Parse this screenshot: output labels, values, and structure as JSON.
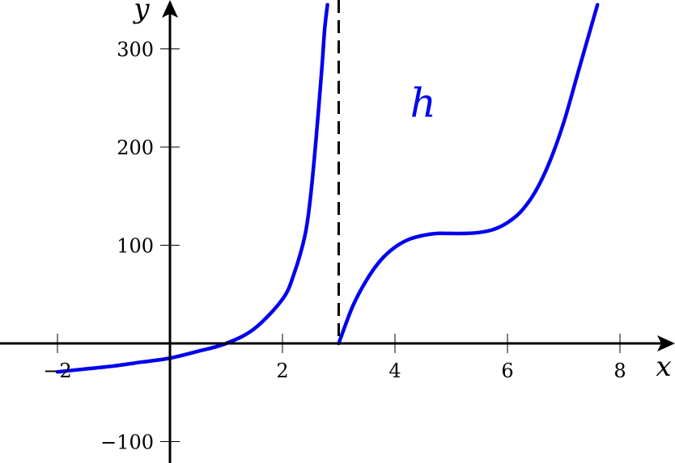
{
  "chart_data": {
    "type": "line",
    "title": "",
    "xlabel": "x",
    "ylabel": "y",
    "xlim": [
      -3,
      9.2
    ],
    "ylim": [
      -120,
      340
    ],
    "x_ticks": [
      {
        "value": -2,
        "label": "−2"
      },
      {
        "value": 2,
        "label": "2"
      },
      {
        "value": 4,
        "label": "4"
      },
      {
        "value": 6,
        "label": "6"
      },
      {
        "value": 8,
        "label": "8"
      }
    ],
    "y_ticks": [
      {
        "value": -100,
        "label": "−100"
      },
      {
        "value": 100,
        "label": "100"
      },
      {
        "value": 200,
        "label": "200"
      },
      {
        "value": 300,
        "label": "300"
      }
    ],
    "vertical_asymptote": {
      "x": 3,
      "style": "dashed"
    },
    "curve_label": {
      "text": "h",
      "x": 4.5,
      "y": 245
    },
    "curve_color": "#0000ee",
    "series": [
      {
        "segment": "left",
        "x": [
          -2,
          -1.5,
          -1,
          -0.5,
          0,
          0.5,
          1,
          1.5,
          2,
          2.2,
          2.4,
          2.5,
          2.6,
          2.7,
          2.75,
          2.8
        ],
        "y": [
          -29,
          -26,
          -23,
          -19,
          -15,
          -8,
          0,
          15,
          45,
          70,
          110,
          150,
          210,
          280,
          320,
          345
        ]
      },
      {
        "segment": "right",
        "x": [
          3,
          3.25,
          3.5,
          3.75,
          4,
          4.25,
          4.5,
          4.75,
          5,
          5.25,
          5.5,
          5.75,
          6,
          6.25,
          6.5,
          6.75,
          7,
          7.25,
          7.5,
          7.6
        ],
        "y": [
          0,
          38,
          65,
          85,
          98,
          106,
          110,
          112,
          112,
          112,
          113,
          116,
          123,
          135,
          155,
          185,
          225,
          275,
          325,
          345
        ]
      }
    ]
  }
}
